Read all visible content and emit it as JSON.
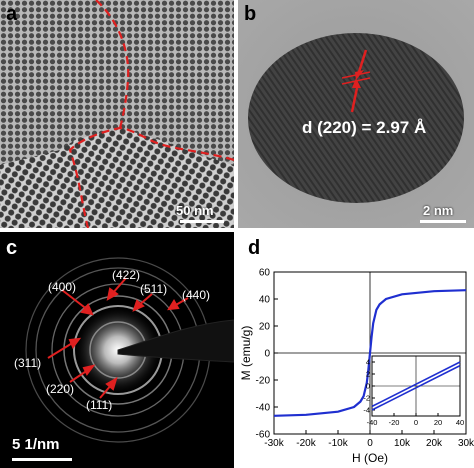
{
  "panels": {
    "a": {
      "label": "a",
      "scale": "50 nm"
    },
    "b": {
      "label": "b",
      "scale": "2 nm",
      "annotation": "d (220) = 2.97 Å"
    },
    "c": {
      "label": "c",
      "scale": "5 1/nm",
      "rings": [
        "(422)",
        "(400)",
        "(511)",
        "(440)",
        "(311)",
        "(220)",
        "(111)"
      ]
    },
    "d": {
      "label": "d"
    }
  },
  "chart_data": {
    "type": "line",
    "xlabel": "H (Oe)",
    "ylabel": "M (emu/g)",
    "xlim": [
      -30000,
      30000
    ],
    "ylim": [
      -60,
      60
    ],
    "xticks": [
      "-30k",
      "-20k",
      "-10k",
      "0",
      "10k",
      "20k",
      "30k"
    ],
    "yticks": [
      "60",
      "40",
      "20",
      "0",
      "-20",
      "-40",
      "-60"
    ],
    "series_color": "#1f2fd0",
    "x": [
      -30000,
      -20000,
      -10000,
      -5000,
      -3000,
      -2000,
      -1000,
      -500,
      0,
      500,
      1000,
      2000,
      3000,
      5000,
      10000,
      20000,
      30000
    ],
    "y": [
      -46.5,
      -45.8,
      -43.5,
      -40,
      -36,
      -32,
      -22,
      -12,
      0,
      12,
      22,
      32,
      36,
      40,
      43.5,
      45.8,
      46.5
    ],
    "inset": {
      "xlim": [
        -40,
        40
      ],
      "ylim": [
        -5,
        5
      ],
      "xticks": [
        "-40",
        "-20",
        "0",
        "20",
        "40"
      ],
      "yticks": [
        "4",
        "2",
        "0",
        "-2",
        "-4"
      ],
      "upper_branch": {
        "x": [
          -40,
          40
        ],
        "y": [
          -3.4,
          4.0
        ]
      },
      "lower_branch": {
        "x": [
          -40,
          40
        ],
        "y": [
          -4.0,
          3.4
        ]
      }
    }
  }
}
